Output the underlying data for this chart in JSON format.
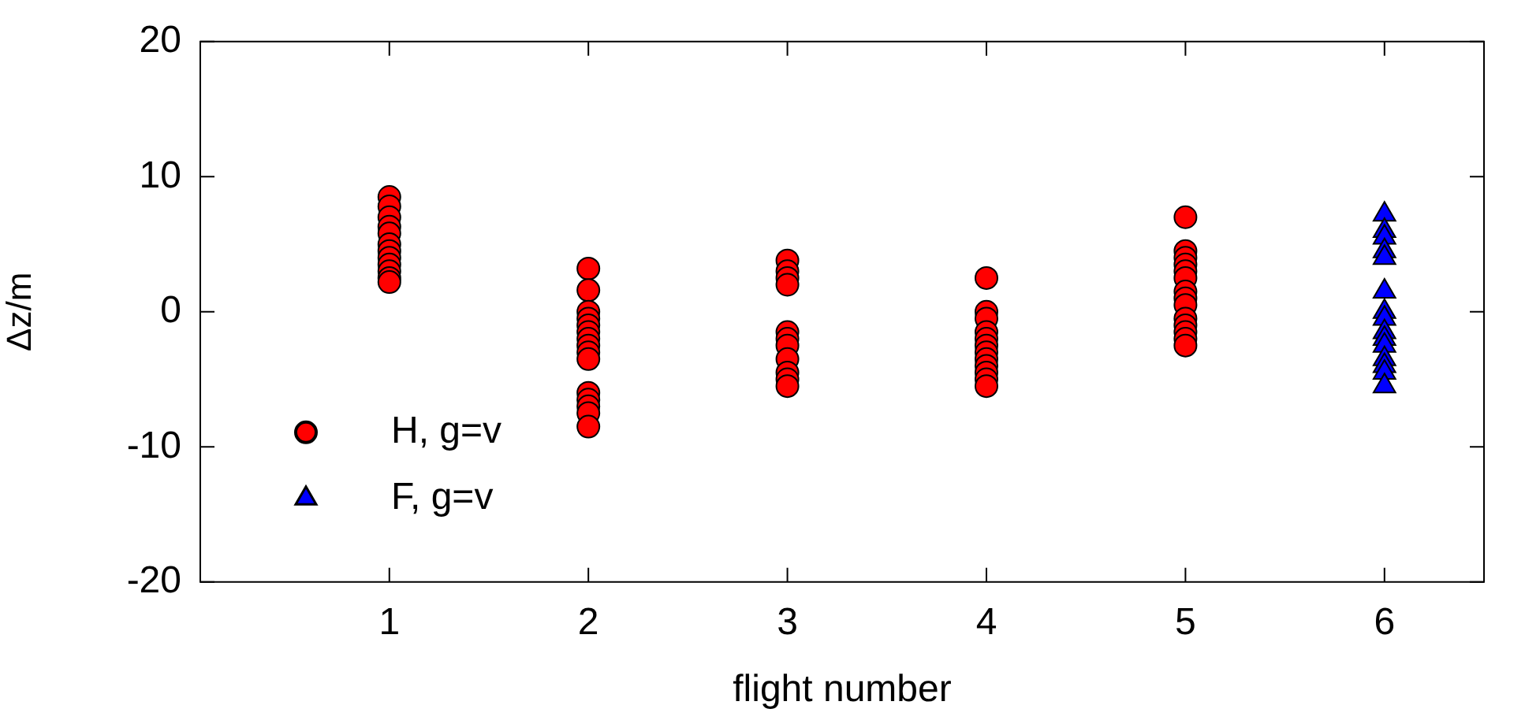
{
  "chart_data": {
    "type": "scatter",
    "xlabel": "flight number",
    "ylabel": "Δz/m",
    "xlim": [
      0.05,
      6.5
    ],
    "xticks": [
      1,
      2,
      3,
      4,
      5,
      6
    ],
    "ylim": [
      -20,
      20
    ],
    "yticks": [
      -20,
      -10,
      0,
      10,
      20
    ],
    "grid": false,
    "legend": "bottom left",
    "series": [
      {
        "name": "H, g=v",
        "color": "#ff0000",
        "marker": "circle",
        "x": [
          1,
          1,
          1,
          1,
          1,
          1,
          1,
          1,
          1,
          1,
          1,
          1,
          2,
          2,
          2,
          2,
          2,
          2,
          2,
          2,
          2,
          2,
          2,
          2,
          2,
          2,
          2,
          3,
          3,
          3,
          3,
          3,
          3,
          3,
          3,
          3,
          3,
          3,
          4,
          4,
          4,
          4,
          4,
          4,
          4,
          4,
          4,
          4,
          4,
          4,
          5,
          5,
          5,
          5,
          5,
          5,
          5,
          5,
          5,
          5,
          5,
          5,
          5,
          5
        ],
        "values": [
          8.5,
          7.8,
          7,
          6.3,
          5.8,
          5,
          4.5,
          4,
          3.5,
          3,
          2.5,
          2.2,
          3.2,
          1.6,
          0,
          -0.5,
          -1,
          -1.5,
          -2,
          -2.5,
          -3,
          -3.5,
          -6,
          -6.5,
          -7,
          -7.5,
          -8.5,
          3.8,
          3,
          2.5,
          2,
          -1.5,
          -2,
          -2.5,
          -3.5,
          -4.5,
          -5,
          -5.5,
          2.5,
          0,
          -0.5,
          -1.5,
          -2,
          -2.5,
          -3,
          -3.5,
          -4,
          -4.5,
          -5,
          -5.5,
          7,
          4.5,
          4,
          3.5,
          3,
          2.5,
          1.5,
          1,
          0.5,
          -0.5,
          -1,
          -1.5,
          -2,
          -2.5
        ]
      },
      {
        "name": "F, g=v",
        "color": "#0000ff",
        "marker": "triangle",
        "x": [
          6,
          6,
          6,
          6,
          6,
          6,
          6,
          6,
          6,
          6,
          6,
          6,
          6,
          6,
          6
        ],
        "values": [
          7.2,
          6,
          5.5,
          4.5,
          4,
          1.5,
          0,
          -0.5,
          -1.5,
          -2,
          -2.5,
          -3.5,
          -4,
          -4.5,
          -5.5
        ]
      }
    ]
  }
}
